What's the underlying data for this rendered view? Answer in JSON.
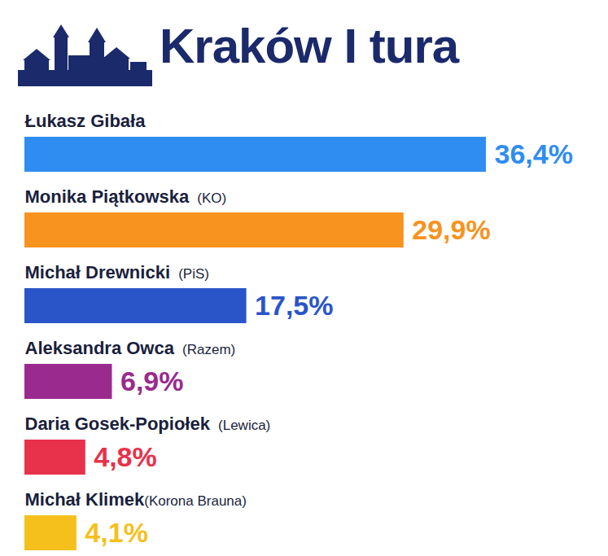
{
  "chart_data": {
    "type": "bar",
    "title": "Kraków I tura",
    "orientation": "horizontal",
    "categories": [
      "Łukasz Gibała",
      "Monika Piątkowska (KO)",
      "Michał Drewnicki (PiS)",
      "Aleksandra Owca (Razem)",
      "Daria Gosek-Popiołek (Lewica)",
      "Michał Klimek(Korona Brauna)"
    ],
    "values": [
      36.4,
      29.9,
      17.5,
      6.9,
      4.8,
      4.1
    ],
    "value_labels": [
      "36,4%",
      "29,9%",
      "17,5%",
      "6,9%",
      "4,8%",
      "4,1%"
    ],
    "colors": [
      "#2f8df2",
      "#f7931e",
      "#2a55c9",
      "#9a2a8e",
      "#e8314b",
      "#f5c01c"
    ],
    "xlim": [
      0,
      36.4
    ],
    "tick_labels": false,
    "data_labels": true,
    "grid": false
  }
}
